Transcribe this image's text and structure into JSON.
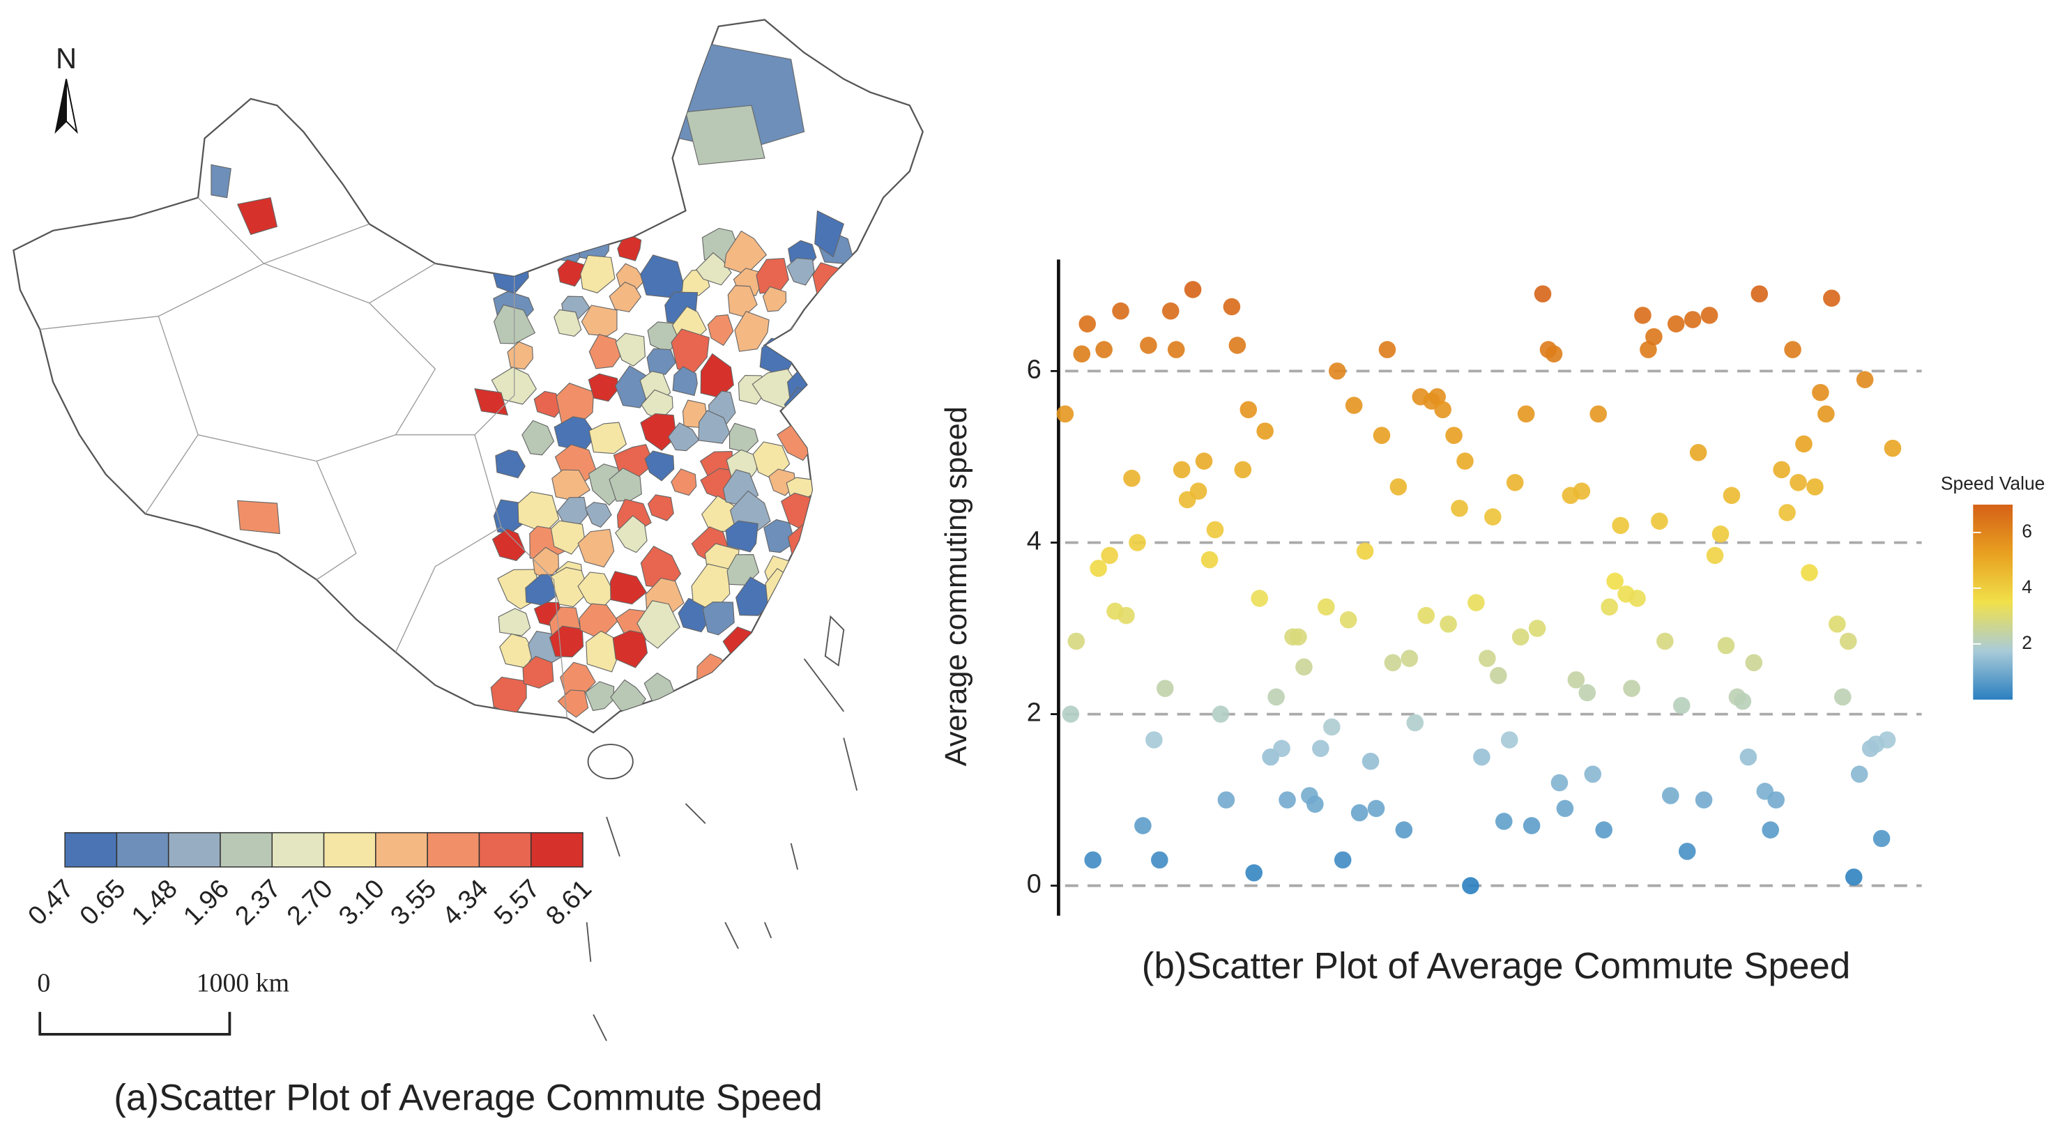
{
  "map": {
    "north": "N",
    "scale_start": "0",
    "scale_end": "1000 km",
    "caption": "(a)Scatter Plot of Average Commute Speed",
    "legend_breaks": [
      0.47,
      0.65,
      1.48,
      1.96,
      2.37,
      {
        "value": 2.7,
        "label": "2.70"
      },
      {
        "value": 3.1,
        "label": "3.10"
      },
      3.55,
      4.34,
      5.57,
      8.61
    ],
    "legend_colors": [
      "#4a74b4",
      "#6d8fba",
      "#97adc2",
      "#b9c8b5",
      "#e3e6c0",
      "#f5e6a5",
      "#f4b883",
      "#f19068",
      "#e8654f",
      "#d7312b"
    ]
  },
  "chart_data": {
    "type": "scatter",
    "title": "(b)Scatter Plot of Average Commute Speed",
    "y_label": "Average commuting speed",
    "ylim": [
      -0.35,
      7.3
    ],
    "yticks": [
      0,
      2,
      4,
      6
    ],
    "grid": true,
    "colorbar": {
      "label": "Speed Value",
      "lim": [
        0,
        7
      ],
      "ticks": [
        2,
        4,
        6
      ],
      "colors": [
        "#2a7fc0",
        "#a9cbd8",
        "#f1e04a",
        "#e8a020",
        "#d56117"
      ]
    },
    "values": [
      5.5,
      2.0,
      2.85,
      6.2,
      6.55,
      0.3,
      3.7,
      6.25,
      3.85,
      3.2,
      6.7,
      3.15,
      4.75,
      4.0,
      0.7,
      6.3,
      1.7,
      0.3,
      2.3,
      6.7,
      6.25,
      4.85,
      4.5,
      6.95,
      4.6,
      4.95,
      3.8,
      4.15,
      2.0,
      1.0,
      6.75,
      6.3,
      4.85,
      5.55,
      0.15,
      3.35,
      5.3,
      1.5,
      2.2,
      1.6,
      1.0,
      2.9,
      2.9,
      2.55,
      1.05,
      0.95,
      1.6,
      3.25,
      1.85,
      6.0,
      0.3,
      3.1,
      5.6,
      0.85,
      3.9,
      1.45,
      0.9,
      5.25,
      6.25,
      2.6,
      4.65,
      0.65,
      2.65,
      1.9,
      5.7,
      3.15,
      5.65,
      5.7,
      5.55,
      3.05,
      5.25,
      4.4,
      4.95,
      0.0,
      3.3,
      1.5,
      2.65,
      4.3,
      2.45,
      0.75,
      1.7,
      4.7,
      2.9,
      5.5,
      0.7,
      3.0,
      6.9,
      6.25,
      6.2,
      1.2,
      0.9,
      4.55,
      2.4,
      4.6,
      2.25,
      1.3,
      5.5,
      0.65,
      3.25,
      3.55,
      4.2,
      3.4,
      2.3,
      3.35,
      6.65,
      6.25,
      6.4,
      4.25,
      2.85,
      1.05,
      6.55,
      2.1,
      0.4,
      6.6,
      5.05,
      1.0,
      6.65,
      3.85,
      4.1,
      2.8,
      4.55,
      2.2,
      2.15,
      1.5,
      2.6,
      6.9,
      1.1,
      0.65,
      1.0,
      4.85,
      4.35,
      6.25,
      4.7,
      5.15,
      3.65,
      4.65,
      5.75,
      5.5,
      6.85,
      3.05,
      2.2,
      2.85,
      0.1,
      1.3,
      5.9,
      1.6,
      1.65,
      0.55,
      1.7,
      5.1
    ]
  }
}
